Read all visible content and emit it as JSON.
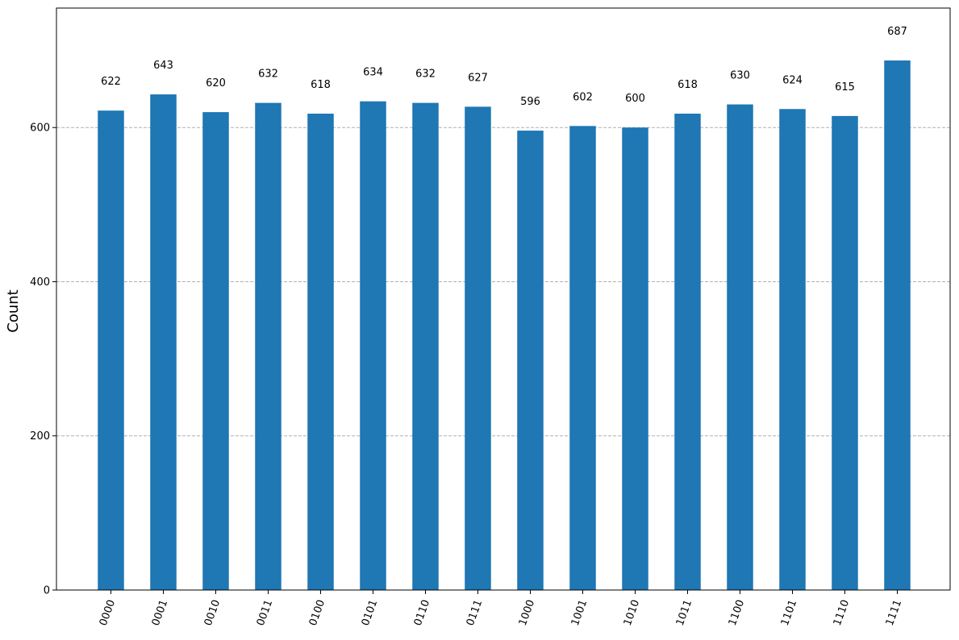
{
  "chart_data": {
    "type": "bar",
    "title": "",
    "xlabel": "",
    "ylabel": "Count",
    "categories": [
      "0000",
      "0001",
      "0010",
      "0011",
      "0100",
      "0101",
      "0110",
      "0111",
      "1000",
      "1001",
      "1010",
      "1011",
      "1100",
      "1101",
      "1110",
      "1111"
    ],
    "values": [
      622,
      643,
      620,
      632,
      618,
      634,
      632,
      627,
      596,
      602,
      600,
      618,
      630,
      624,
      615,
      687
    ],
    "ylim": [
      0,
      755
    ],
    "yticks": [
      0,
      200,
      400,
      600
    ],
    "grid": "horizontal dashed",
    "legend": "none",
    "bar_color": "#1f77b4",
    "grid_color": "#b0b0b0"
  }
}
